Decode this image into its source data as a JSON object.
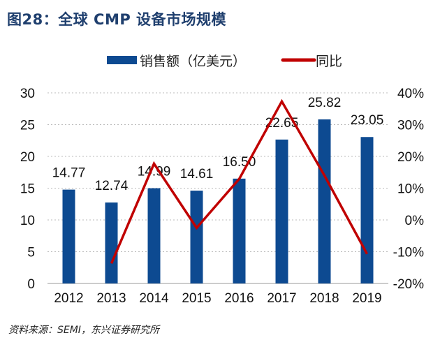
{
  "title": "图28：全球 CMP 设备市场规模",
  "source": "资料来源：SEMI，东兴证券研究所",
  "chart_data": {
    "type": "bar+line",
    "categories": [
      "2012",
      "2013",
      "2014",
      "2015",
      "2016",
      "2017",
      "2018",
      "2019"
    ],
    "series": [
      {
        "name": "销售额（亿美元）",
        "type": "bar",
        "axis": "left",
        "color": "#0d4a91",
        "values": [
          14.77,
          12.74,
          14.99,
          14.61,
          16.5,
          22.65,
          25.82,
          23.05
        ],
        "labels": [
          "14.77",
          "12.74",
          "14.99",
          "14.61",
          "16.50",
          "22.65",
          "25.82",
          "23.05"
        ]
      },
      {
        "name": "同比",
        "type": "line",
        "axis": "right",
        "color": "#c00000",
        "values": [
          null,
          -13.7,
          17.7,
          -2.5,
          12.9,
          37.3,
          14.0,
          -10.7
        ]
      }
    ],
    "y_left": {
      "min": 0,
      "max": 30,
      "ticks": [
        "0",
        "5",
        "10",
        "15",
        "20",
        "25",
        "30"
      ]
    },
    "y_right": {
      "min": -20,
      "max": 40,
      "ticks": [
        "-20%",
        "-10%",
        "0%",
        "10%",
        "20%",
        "30%",
        "40%"
      ]
    },
    "grid": "horizontal dotted",
    "legend": "top"
  }
}
